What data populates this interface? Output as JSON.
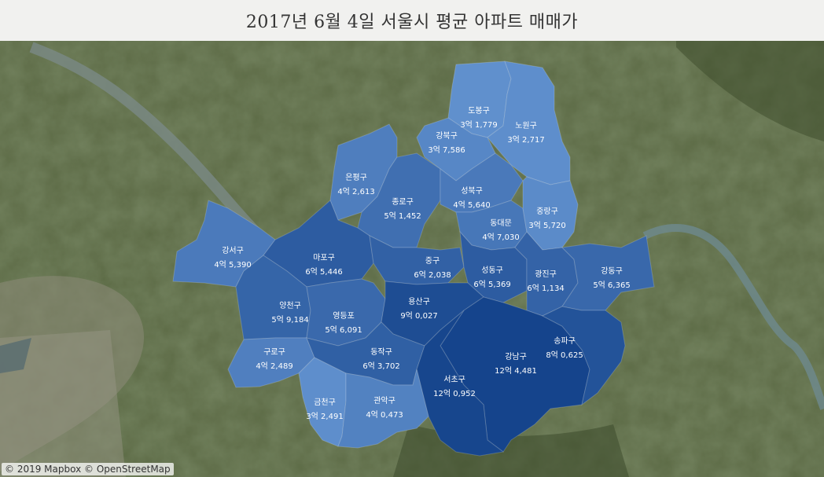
{
  "title": "2017년 6월 4일 서울시 평균 아파트 매매가",
  "attribution": "© 2019 Mapbox © OpenStreetMap",
  "colors": {
    "light": "#6a9ad6",
    "dark": "#15448c"
  },
  "districts": [
    {
      "id": "dobong",
      "name": "도봉구",
      "value": "3억 1,779",
      "level": 0.12
    },
    {
      "id": "nowon",
      "name": "노원구",
      "value": "3억 2,717",
      "level": 0.14
    },
    {
      "id": "gangbuk",
      "name": "강북구",
      "value": "3억 7,586",
      "level": 0.22
    },
    {
      "id": "eunpyeong",
      "name": "은평구",
      "value": "4억 2,613",
      "level": 0.32
    },
    {
      "id": "jongno",
      "name": "종로구",
      "value": "5억 1,452",
      "level": 0.5
    },
    {
      "id": "seongbuk",
      "name": "성북구",
      "value": "4억 5,640",
      "level": 0.38
    },
    {
      "id": "dongdaemun",
      "name": "동대문",
      "value": "4억 7,030",
      "level": 0.41
    },
    {
      "id": "jungnang",
      "name": "중랑구",
      "value": "3억 5,720",
      "level": 0.18
    },
    {
      "id": "gangseo",
      "name": "강서구",
      "value": "4억 5,390",
      "level": 0.37
    },
    {
      "id": "mapo",
      "name": "마포구",
      "value": "6억 5,446",
      "level": 0.72
    },
    {
      "id": "junggu",
      "name": "중구",
      "value": "6억 2,038",
      "level": 0.66
    },
    {
      "id": "seongdong",
      "name": "성동구",
      "value": "6억 5,369",
      "level": 0.72
    },
    {
      "id": "gwangjin",
      "name": "광진구",
      "value": "6억 1,134",
      "level": 0.64
    },
    {
      "id": "gangdong",
      "name": "강동구",
      "value": "5억 6,365",
      "level": 0.58
    },
    {
      "id": "yangcheon",
      "name": "양천구",
      "value": "5억 9,184",
      "level": 0.62
    },
    {
      "id": "yeongdeungpo",
      "name": "영등포",
      "value": "5억 6,091",
      "level": 0.57
    },
    {
      "id": "yongsan",
      "name": "용산구",
      "value": "9억 0,027",
      "level": 0.9
    },
    {
      "id": "guro",
      "name": "구로구",
      "value": "4억 2,489",
      "level": 0.31
    },
    {
      "id": "dongjak",
      "name": "동작구",
      "value": "6억 3,702",
      "level": 0.68
    },
    {
      "id": "gangnam",
      "name": "강남구",
      "value": "12억 4,481",
      "level": 1.0
    },
    {
      "id": "songpa",
      "name": "송파구",
      "value": "8억 0,625",
      "level": 0.83
    },
    {
      "id": "seocho",
      "name": "서초구",
      "value": "12억 0,952",
      "level": 0.98
    },
    {
      "id": "geumcheon",
      "name": "금천구",
      "value": "3억 2,491",
      "level": 0.14
    },
    {
      "id": "gwanak",
      "name": "관악구",
      "value": "4억 0,473",
      "level": 0.28
    }
  ]
}
